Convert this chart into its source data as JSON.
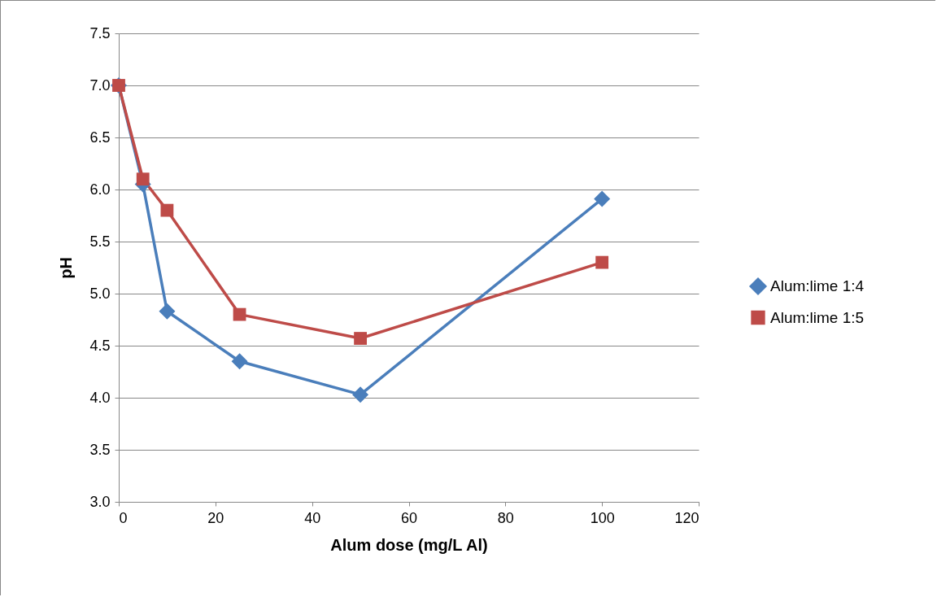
{
  "chart_data": {
    "type": "line",
    "xlabel": "Alum dose (mg/L Al)",
    "ylabel": "pH",
    "xlim": [
      0,
      120
    ],
    "xticks": [
      0,
      20,
      40,
      60,
      80,
      100,
      120
    ],
    "ylim": [
      3.0,
      7.5
    ],
    "yticks": [
      {
        "value": 3.0,
        "label": "3.0"
      },
      {
        "value": 3.5,
        "label": "3.5"
      },
      {
        "value": 4.0,
        "label": "4.0"
      },
      {
        "value": 4.5,
        "label": "4.5"
      },
      {
        "value": 5.0,
        "label": "5.0"
      },
      {
        "value": 5.5,
        "label": "5.5"
      },
      {
        "value": 6.0,
        "label": "6.0"
      },
      {
        "value": 6.5,
        "label": "6.5"
      },
      {
        "value": 7.0,
        "label": "7.0"
      },
      {
        "value": 7.5,
        "label": "7.5"
      }
    ],
    "grid": "y",
    "legend": "right",
    "x": [
      0,
      5,
      10,
      25,
      50,
      100
    ],
    "series": [
      {
        "name": "Alum:lime 1:4",
        "color": "#4a7ebb",
        "marker": "diamond",
        "values": [
          7.0,
          6.05,
          4.83,
          4.35,
          4.03,
          5.91
        ]
      },
      {
        "name": "Alum:lime 1:5",
        "color": "#be4b48",
        "marker": "square",
        "values": [
          7.0,
          6.1,
          5.8,
          4.8,
          4.57,
          5.3
        ]
      }
    ]
  }
}
